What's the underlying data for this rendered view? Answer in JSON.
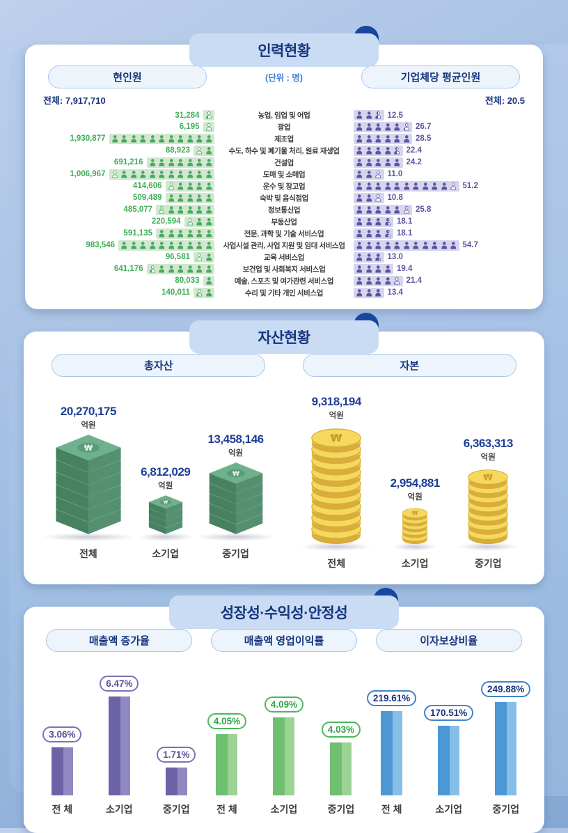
{
  "colors": {
    "navy": "#17357d",
    "ribbon_blue": "#16479e",
    "title_pill_bg": "#c9dcf4",
    "green": "#3fae56",
    "green_band": "#cfe8cf",
    "purple": "#5b55a0",
    "purple_band": "#d6d4ee",
    "bar_purple": "#6b63a5",
    "bar_green": "#6fbf70",
    "bar_blue": "#4b98d5"
  },
  "section1": {
    "title": "인력현황",
    "left_header": "현인원",
    "unit_note": "(단위 : 명)",
    "right_header": "기업체당 평균인원",
    "left_total": "전체: 7,917,710",
    "right_total": "전체: 20.5",
    "rows": [
      {
        "label": "농업, 임업 및 어업",
        "left_value": "31,284",
        "left_full": 0,
        "left_partial": 0.4,
        "right_value": "12.5",
        "right_full": 2,
        "right_partial": 0.5
      },
      {
        "label": "광업",
        "left_value": "6,195",
        "left_full": 0,
        "left_partial": 0.12,
        "right_value": "26.7",
        "right_full": 5,
        "right_partial": 0.34
      },
      {
        "label": "제조업",
        "left_value": "1,930,877",
        "left_full": 11,
        "left_partial": 0,
        "right_value": "28.5",
        "right_full": 6,
        "right_partial": 0
      },
      {
        "label": "수도, 하수 및 폐기물 처리, 원료 재생업",
        "left_value": "88,923",
        "left_full": 1,
        "left_partial": 0.15,
        "right_value": "22.4",
        "right_full": 4,
        "right_partial": 0.48
      },
      {
        "label": "건설업",
        "left_value": "691,216",
        "left_full": 7,
        "left_partial": 0,
        "right_value": "24.2",
        "right_full": 5,
        "right_partial": 0
      },
      {
        "label": "도매 및 소매업",
        "left_value": "1,006,967",
        "left_full": 10,
        "left_partial": 0.1,
        "right_value": "11.0",
        "right_full": 2,
        "right_partial": 0.2
      },
      {
        "label": "운수 및 창고업",
        "left_value": "414,606",
        "left_full": 4,
        "left_partial": 0.15,
        "right_value": "51.2",
        "right_full": 10,
        "right_partial": 0.24
      },
      {
        "label": "숙박 및 음식점업",
        "left_value": "509,489",
        "left_full": 5,
        "left_partial": 0,
        "right_value": "10.8",
        "right_full": 2,
        "right_partial": 0.16
      },
      {
        "label": "정보통신업",
        "left_value": "485,077",
        "left_full": 5,
        "left_partial": 0.12,
        "right_value": "25.8",
        "right_full": 5,
        "right_partial": 0.16
      },
      {
        "label": "부동산업",
        "left_value": "220,594",
        "left_full": 2,
        "left_partial": 0.2,
        "right_value": "18.1",
        "right_full": 3,
        "right_partial": 0.62
      },
      {
        "label": "전문, 과학 및 기술 서비스업",
        "left_value": "591,135",
        "left_full": 6,
        "left_partial": 0,
        "right_value": "18.1",
        "right_full": 3,
        "right_partial": 0.62
      },
      {
        "label": "사업시설 관리, 사업 지원 및 임대 서비스업",
        "left_value": "983,546",
        "left_full": 10,
        "left_partial": 0,
        "right_value": "54.7",
        "right_full": 11,
        "right_partial": 0
      },
      {
        "label": "교육 서비스업",
        "left_value": "96,581",
        "left_full": 1,
        "left_partial": 0.15,
        "right_value": "13.0",
        "right_full": 2,
        "right_partial": 0.6
      },
      {
        "label": "보건업 및 사회복지 서비스업",
        "left_value": "641,176",
        "left_full": 6,
        "left_partial": 0.4,
        "right_value": "19.4",
        "right_full": 4,
        "right_partial": 0
      },
      {
        "label": "예술, 스포츠 및 여가관련 서비스업",
        "left_value": "80,033",
        "left_full": 1,
        "left_partial": 0,
        "right_value": "21.4",
        "right_full": 4,
        "right_partial": 0.28
      },
      {
        "label": "수리 및 기타 개인 서비스업",
        "left_value": "140,011",
        "left_full": 1,
        "left_partial": 0.4,
        "right_value": "13.4",
        "right_full": 2,
        "right_partial": 0.68
      }
    ]
  },
  "section2": {
    "title": "자산현황",
    "groups": [
      {
        "header": "총자산",
        "kind": "bills",
        "items": [
          {
            "label": "전체",
            "value": "20,270,175",
            "unit": "억원",
            "size": "large"
          },
          {
            "label": "소기업",
            "value": "6,812,029",
            "unit": "억원",
            "size": "small"
          },
          {
            "label": "중기업",
            "value": "13,458,146",
            "unit": "억원",
            "size": "medium"
          }
        ]
      },
      {
        "header": "자본",
        "kind": "coins",
        "items": [
          {
            "label": "전체",
            "value": "9,318,194",
            "unit": "억원",
            "size": "large"
          },
          {
            "label": "소기업",
            "value": "2,954,881",
            "unit": "억원",
            "size": "small"
          },
          {
            "label": "중기업",
            "value": "6,363,313",
            "unit": "억원",
            "size": "medium"
          }
        ]
      }
    ]
  },
  "section3": {
    "title": "성장성·수익성·안정성",
    "charts": [
      {
        "header": "매출액 증가율",
        "theme": "purple",
        "categories": [
          "전 체",
          "소기업",
          "중기업"
        ],
        "values": [
          3.06,
          6.47,
          1.71
        ],
        "labels": [
          "3.06%",
          "6.47%",
          "1.71%"
        ]
      },
      {
        "header": "매출액 영업이익률",
        "theme": "green",
        "categories": [
          "전 체",
          "소기업",
          "중기업"
        ],
        "values": [
          4.05,
          4.09,
          4.03
        ],
        "labels": [
          "4.05%",
          "4.09%",
          "4.03%"
        ]
      },
      {
        "header": "이자보상비율",
        "theme": "blue",
        "categories": [
          "전 체",
          "소기업",
          "중기업"
        ],
        "values": [
          219.61,
          170.51,
          249.88
        ],
        "labels": [
          "219.61%",
          "170.51%",
          "249.88%"
        ]
      }
    ]
  },
  "chart_data": [
    {
      "type": "bar",
      "title": "현인원",
      "unit": "명",
      "total": 7917710,
      "categories": [
        "농업, 임업 및 어업",
        "광업",
        "제조업",
        "수도, 하수 및 폐기물 처리, 원료 재생업",
        "건설업",
        "도매 및 소매업",
        "운수 및 창고업",
        "숙박 및 음식점업",
        "정보통신업",
        "부동산업",
        "전문, 과학 및 기술 서비스업",
        "사업시설 관리, 사업 지원 및 임대 서비스업",
        "교육 서비스업",
        "보건업 및 사회복지 서비스업",
        "예술, 스포츠 및 여가관련 서비스업",
        "수리 및 기타 개인 서비스업"
      ],
      "values": [
        31284,
        6195,
        1930877,
        88923,
        691216,
        1006967,
        414606,
        509489,
        485077,
        220594,
        591135,
        983546,
        96581,
        641176,
        80033,
        140011
      ]
    },
    {
      "type": "bar",
      "title": "기업체당 평균인원",
      "unit": "명",
      "total": 20.5,
      "categories": [
        "농업, 임업 및 어업",
        "광업",
        "제조업",
        "수도, 하수 및 폐기물 처리, 원료 재생업",
        "건설업",
        "도매 및 소매업",
        "운수 및 창고업",
        "숙박 및 음식점업",
        "정보통신업",
        "부동산업",
        "전문, 과학 및 기술 서비스업",
        "사업시설 관리, 사업 지원 및 임대 서비스업",
        "교육 서비스업",
        "보건업 및 사회복지 서비스업",
        "예술, 스포츠 및 여가관련 서비스업",
        "수리 및 기타 개인 서비스업"
      ],
      "values": [
        12.5,
        26.7,
        28.5,
        22.4,
        24.2,
        11.0,
        51.2,
        10.8,
        25.8,
        18.1,
        18.1,
        54.7,
        13.0,
        19.4,
        21.4,
        13.4
      ]
    },
    {
      "type": "bar",
      "title": "총자산",
      "unit": "억원",
      "categories": [
        "전체",
        "소기업",
        "중기업"
      ],
      "values": [
        20270175,
        6812029,
        13458146
      ]
    },
    {
      "type": "bar",
      "title": "자본",
      "unit": "억원",
      "categories": [
        "전체",
        "소기업",
        "중기업"
      ],
      "values": [
        9318194,
        2954881,
        6363313
      ]
    },
    {
      "type": "bar",
      "title": "매출액 증가율",
      "unit": "%",
      "categories": [
        "전체",
        "소기업",
        "중기업"
      ],
      "values": [
        3.06,
        6.47,
        1.71
      ]
    },
    {
      "type": "bar",
      "title": "매출액 영업이익률",
      "unit": "%",
      "categories": [
        "전체",
        "소기업",
        "중기업"
      ],
      "values": [
        4.05,
        4.09,
        4.03
      ]
    },
    {
      "type": "bar",
      "title": "이자보상비율",
      "unit": "%",
      "categories": [
        "전체",
        "소기업",
        "중기업"
      ],
      "values": [
        219.61,
        170.51,
        249.88
      ]
    }
  ]
}
